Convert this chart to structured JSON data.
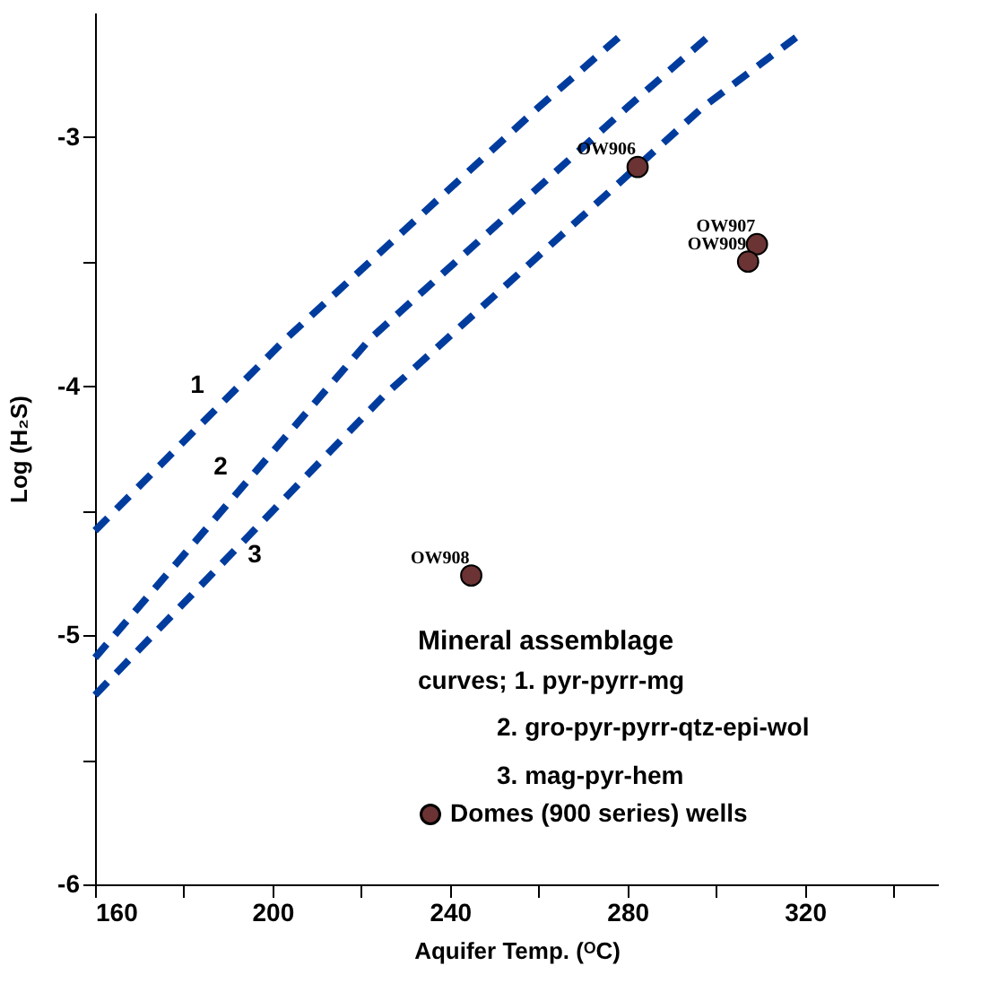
{
  "chart_data": {
    "type": "line",
    "xlabel": "Aquifer Temp. (ᴼC)",
    "ylabel": "Log (H₂S)",
    "xlim": [
      160,
      350
    ],
    "ylim": [
      -6,
      -2.5
    ],
    "xticks": [
      160,
      {
        "value": 180,
        "label": null
      },
      200,
      {
        "value": 220,
        "label": null
      },
      240,
      {
        "value": 260,
        "label": null
      },
      280,
      {
        "value": 300,
        "label": null
      },
      320,
      {
        "value": 340,
        "label": null
      }
    ],
    "yticks": [
      -6,
      {
        "value": -5.5,
        "label": null
      },
      -5,
      {
        "value": -4.5,
        "label": null
      },
      -4,
      {
        "value": -3.5,
        "label": null
      },
      -3
    ],
    "legend": "bottom right",
    "series": [
      {
        "name": "1",
        "color": "#003c9e",
        "line_style": "dashed",
        "x": [
          160,
          203,
          260,
          278
        ],
        "values": [
          -4.58,
          -3.81,
          -2.88,
          -2.6
        ]
      },
      {
        "name": "2",
        "color": "#003c9e",
        "line_style": "dashed",
        "x": [
          160,
          222,
          280,
          298
        ],
        "values": [
          -5.09,
          -3.81,
          -2.88,
          -2.6
        ]
      },
      {
        "name": "3",
        "color": "#003c9e",
        "line_style": "dashed",
        "x": [
          160,
          225,
          297,
          318
        ],
        "values": [
          -5.24,
          -4.04,
          -2.88,
          -2.6
        ]
      },
      {
        "type": "scatter",
        "name": "Domes (900 series) wells",
        "color": "#6b3333",
        "marker": "circle",
        "x": [
          282.3,
          309.2,
          307.2,
          244.8
        ],
        "values": [
          -3.12,
          -3.43,
          -3.5,
          -4.76
        ],
        "value_labels": [
          "OW906",
          "OW907",
          "OW909",
          "OW908"
        ]
      }
    ],
    "annotations": [
      "Mineral assemblage",
      "curves;  1.  pyr-pyrr-mg",
      "2.  gro-pyr-pyrr-qtz-epi-wol",
      "3.  mag-pyr-hem"
    ]
  }
}
